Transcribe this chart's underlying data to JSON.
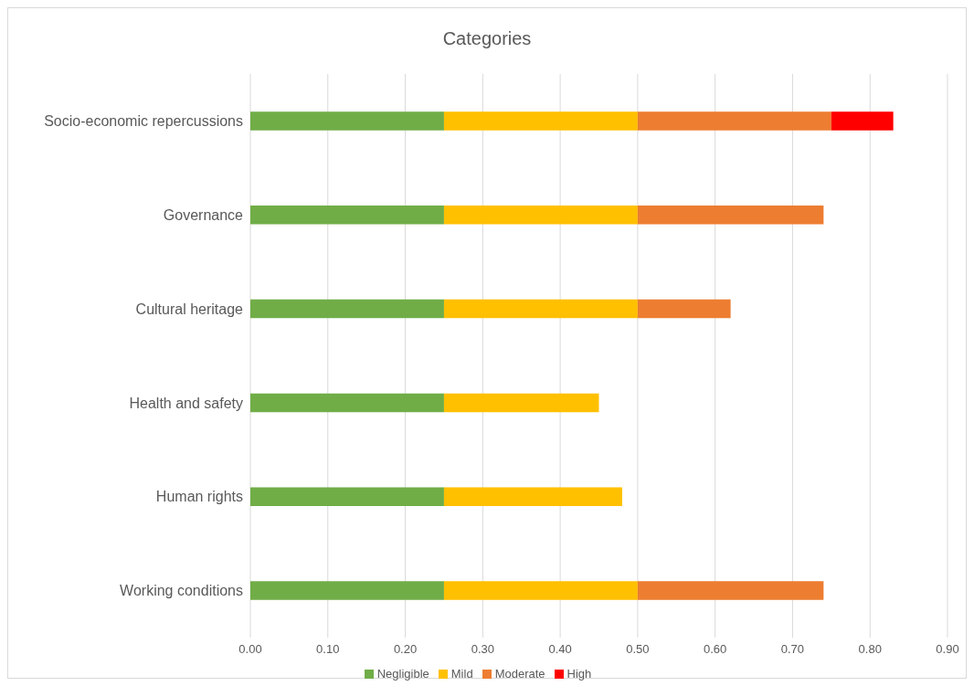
{
  "chart_data": {
    "type": "bar",
    "orientation": "horizontal",
    "stacked": true,
    "title": "Categories",
    "categories": [
      "Socio-economic repercussions",
      "Governance",
      "Cultural heritage",
      "Health and safety",
      "Human rights",
      "Working conditions"
    ],
    "series": [
      {
        "name": "Negligible",
        "color": "#70ad47",
        "values": [
          0.25,
          0.25,
          0.25,
          0.25,
          0.25,
          0.25
        ]
      },
      {
        "name": "Mild",
        "color": "#ffc000",
        "values": [
          0.25,
          0.25,
          0.25,
          0.2,
          0.23,
          0.25
        ]
      },
      {
        "name": "Moderate",
        "color": "#ed7d31",
        "values": [
          0.25,
          0.24,
          0.12,
          null,
          null,
          0.24
        ]
      },
      {
        "name": "High",
        "color": "#ff0000",
        "values": [
          0.08,
          null,
          null,
          null,
          null,
          null
        ]
      }
    ],
    "xlim": [
      0,
      0.9
    ],
    "xticks": [
      {
        "value": 0,
        "label": "0.00"
      },
      {
        "value": 0.1,
        "label": "0.10"
      },
      {
        "value": 0.2,
        "label": "0.20"
      },
      {
        "value": 0.3,
        "label": "0.30"
      },
      {
        "value": 0.4,
        "label": "0.40"
      },
      {
        "value": 0.5,
        "label": "0.50"
      },
      {
        "value": 0.6,
        "label": "0.60"
      },
      {
        "value": 0.7,
        "label": "0.70"
      },
      {
        "value": 0.8,
        "label": "0.80"
      },
      {
        "value": 0.9,
        "label": "0.90"
      }
    ],
    "grid": "x",
    "legend": "bottom"
  }
}
